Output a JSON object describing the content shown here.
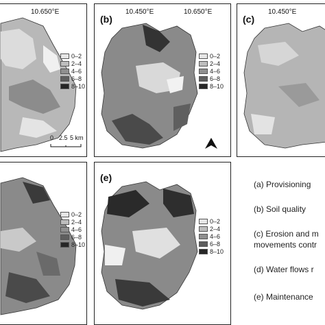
{
  "panels": {
    "a": {
      "coord_right": "10.650°E",
      "legend": [
        "0–2",
        "2–4",
        "4–6",
        "6–8",
        "8–10"
      ],
      "scale": {
        "labels": [
          "0",
          "2.5",
          "5 km"
        ]
      }
    },
    "b": {
      "label": "(b)",
      "coord_left": "10.450°E",
      "coord_right": "10.650°E",
      "legend": [
        "0–2",
        "2–4",
        "4–6",
        "6–8",
        "8–10"
      ]
    },
    "c": {
      "label": "(c)",
      "coord_left": "10.450°E"
    },
    "d": {
      "legend": [
        "0–2",
        "2–4",
        "4–6",
        "6–8",
        "8–10"
      ]
    },
    "e": {
      "label": "(e)",
      "legend": [
        "0–2",
        "2–4",
        "4–6",
        "6–8",
        "8–10"
      ]
    }
  },
  "legend_colors": [
    "#e6e6e6",
    "#bdbdbd",
    "#8f8f8f",
    "#5e5e5e",
    "#262626"
  ],
  "descriptions": [
    "(a) Provisioning",
    "(b) Soil quality",
    "(c) Erosion and m",
    "movements contr",
    "(d) Water flows r",
    "(e) Maintenance"
  ]
}
